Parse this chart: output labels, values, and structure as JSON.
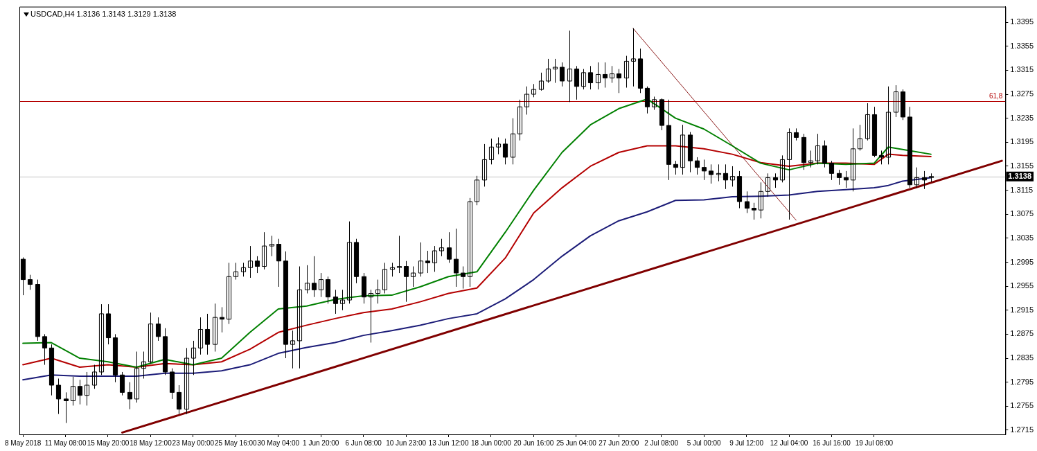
{
  "chart_data": {
    "type": "candlestick",
    "title": "USDCAD,H4 1.3136 1.3143 1.3129 1.3138",
    "color": "#000000",
    "categories": [
      "8 May 2018",
      null,
      null,
      null,
      null,
      null,
      "11 May 08:00",
      null,
      null,
      null,
      null,
      null,
      "15 May 20:00",
      null,
      null,
      null,
      null,
      null,
      "18 May 12:00",
      null,
      null,
      null,
      null,
      null,
      "23 May 00:00",
      null,
      null,
      null,
      null,
      null,
      "25 May 16:00",
      null,
      null,
      null,
      null,
      null,
      "30 May 04:00",
      null,
      null,
      null,
      null,
      null,
      "1 Jun 20:00",
      null,
      null,
      null,
      null,
      null,
      "6 Jun 08:00",
      null,
      null,
      null,
      null,
      null,
      "10 Jun 23:00",
      null,
      null,
      null,
      null,
      null,
      "13 Jun 12:00",
      null,
      null,
      null,
      null,
      null,
      "18 Jun 00:00",
      null,
      null,
      null,
      null,
      null,
      "20 Jun 16:00",
      null,
      null,
      null,
      null,
      null,
      "25 Jun 04:00",
      null,
      null,
      null,
      null,
      null,
      "27 Jun 20:00",
      null,
      null,
      null,
      null,
      null,
      "2 Jul 08:00",
      null,
      null,
      null,
      null,
      null,
      "5 Jul 00:00",
      null,
      null,
      null,
      null,
      null,
      "9 Jul 12:00",
      null,
      null,
      null,
      null,
      null,
      "12 Jul 04:00",
      null,
      null,
      null,
      null,
      null,
      "16 Jul 16:00",
      null,
      null,
      null,
      null,
      null,
      "19 Jul 08:00",
      null,
      null,
      null,
      null,
      null,
      null,
      null,
      null,
      null,
      null,
      null,
      null,
      null,
      null,
      null,
      null,
      null,
      null
    ],
    "ohlc": [
      [
        1.3,
        1.3003,
        1.294,
        1.2966
      ],
      [
        1.2966,
        1.2974,
        1.2949,
        1.2958
      ],
      [
        1.2958,
        1.2966,
        1.2864,
        1.2871
      ],
      [
        1.2871,
        1.2875,
        1.2824,
        1.2852
      ],
      [
        1.2852,
        1.2858,
        1.2773,
        1.279
      ],
      [
        1.279,
        1.2801,
        1.2742,
        1.2767
      ],
      [
        1.2767,
        1.2778,
        1.2727,
        1.2764
      ],
      [
        1.2764,
        1.2804,
        1.2756,
        1.2788
      ],
      [
        1.2788,
        1.2799,
        1.2758,
        1.2773
      ],
      [
        1.2773,
        1.2812,
        1.2756,
        1.279
      ],
      [
        1.279,
        1.2824,
        1.2784,
        1.2812
      ],
      [
        1.2812,
        1.2925,
        1.2807,
        1.2909
      ],
      [
        1.2909,
        1.2925,
        1.2858,
        1.2869
      ],
      [
        1.2869,
        1.2875,
        1.2795,
        1.2807
      ],
      [
        1.2807,
        1.2812,
        1.2773,
        1.2778
      ],
      [
        1.2778,
        1.2795,
        1.275,
        1.2767
      ],
      [
        1.2767,
        1.2846,
        1.2761,
        1.2818
      ],
      [
        1.2818,
        1.2846,
        1.2801,
        1.2829
      ],
      [
        1.2829,
        1.2911,
        1.2826,
        1.2892
      ],
      [
        1.2892,
        1.2903,
        1.2864,
        1.2871
      ],
      [
        1.2871,
        1.2885,
        1.2807,
        1.2812
      ],
      [
        1.2812,
        1.2818,
        1.2767,
        1.2778
      ],
      [
        1.2778,
        1.279,
        1.2742,
        1.275
      ],
      [
        1.275,
        1.2852,
        1.2742,
        1.2835
      ],
      [
        1.2835,
        1.2864,
        1.2807,
        1.2852
      ],
      [
        1.2852,
        1.2903,
        1.2841,
        1.2883
      ],
      [
        1.2883,
        1.2909,
        1.2841,
        1.2858
      ],
      [
        1.2858,
        1.2926,
        1.2846,
        1.2903
      ],
      [
        1.2903,
        1.292,
        1.2878,
        1.29
      ],
      [
        1.29,
        1.2994,
        1.2892,
        1.2971
      ],
      [
        1.2971,
        1.2994,
        1.2966,
        1.2979
      ],
      [
        1.2979,
        1.2994,
        1.2971,
        1.2986
      ],
      [
        1.2986,
        1.3022,
        1.2969,
        1.2997
      ],
      [
        1.2997,
        1.3005,
        1.2977,
        1.2988
      ],
      [
        1.2988,
        1.3045,
        1.2983,
        1.3022
      ],
      [
        1.3022,
        1.3039,
        1.3005,
        1.3025
      ],
      [
        1.3025,
        1.3034,
        1.2954,
        1.2997
      ],
      [
        1.2997,
        1.3013,
        1.2835,
        1.2858
      ],
      [
        1.2858,
        1.2881,
        1.2818,
        1.2864
      ],
      [
        1.2864,
        1.2988,
        1.2818,
        1.2949
      ],
      [
        1.2949,
        1.299,
        1.2943,
        1.296
      ],
      [
        1.296,
        1.3005,
        1.2937,
        1.2949
      ],
      [
        1.2949,
        1.2977,
        1.2937,
        1.2966
      ],
      [
        1.2966,
        1.2971,
        1.2926,
        1.2937
      ],
      [
        1.2937,
        1.2949,
        1.2909,
        1.2926
      ],
      [
        1.2926,
        1.2949,
        1.2915,
        1.2932
      ],
      [
        1.2932,
        1.3063,
        1.2926,
        1.3028
      ],
      [
        1.3028,
        1.3034,
        1.296,
        1.2971
      ],
      [
        1.2971,
        1.2977,
        1.2926,
        1.2937
      ],
      [
        1.2937,
        1.2949,
        1.2861,
        1.2943
      ],
      [
        1.2943,
        1.2966,
        1.2926,
        1.2949
      ],
      [
        1.2949,
        1.2994,
        1.2943,
        1.2983
      ],
      [
        1.2983,
        1.2994,
        1.2971,
        1.2986
      ],
      [
        1.2986,
        1.3039,
        1.2977,
        1.2988
      ],
      [
        1.2988,
        1.2997,
        1.2929,
        1.2971
      ],
      [
        1.2971,
        1.2988,
        1.2954,
        1.2977
      ],
      [
        1.2977,
        1.3028,
        1.2971,
        1.2997
      ],
      [
        1.2997,
        1.3014,
        1.2977,
        1.2994
      ],
      [
        1.2994,
        1.3022,
        1.2979,
        1.3014
      ],
      [
        1.3014,
        1.3034,
        1.3005,
        1.3019
      ],
      [
        1.3019,
        1.3045,
        1.2994,
        1.3
      ],
      [
        1.3,
        1.3051,
        1.2954,
        1.2977
      ],
      [
        1.2977,
        1.2988,
        1.2951,
        1.2971
      ],
      [
        1.2971,
        1.3102,
        1.2954,
        1.3096
      ],
      [
        1.3096,
        1.3139,
        1.309,
        1.3132
      ],
      [
        1.3132,
        1.3192,
        1.3121,
        1.3166
      ],
      [
        1.3166,
        1.3201,
        1.3158,
        1.3187
      ],
      [
        1.3187,
        1.3203,
        1.3175,
        1.3192
      ],
      [
        1.3192,
        1.3201,
        1.3158,
        1.317
      ],
      [
        1.317,
        1.3235,
        1.3158,
        1.3209
      ],
      [
        1.3209,
        1.3266,
        1.3198,
        1.3254
      ],
      [
        1.3254,
        1.3288,
        1.3241,
        1.3275
      ],
      [
        1.3275,
        1.3292,
        1.327,
        1.3283
      ],
      [
        1.3283,
        1.3311,
        1.3281,
        1.3297
      ],
      [
        1.3297,
        1.3334,
        1.3294,
        1.3317
      ],
      [
        1.3317,
        1.3334,
        1.3294,
        1.332
      ],
      [
        1.332,
        1.3328,
        1.3288,
        1.3297
      ],
      [
        1.3297,
        1.3381,
        1.3262,
        1.3317
      ],
      [
        1.3317,
        1.3322,
        1.3266,
        1.3288
      ],
      [
        1.3288,
        1.3317,
        1.3283,
        1.3311
      ],
      [
        1.3311,
        1.3322,
        1.3283,
        1.3294
      ],
      [
        1.3294,
        1.3328,
        1.3283,
        1.3308
      ],
      [
        1.3308,
        1.3328,
        1.3286,
        1.3302
      ],
      [
        1.3302,
        1.3322,
        1.3294,
        1.3309
      ],
      [
        1.3309,
        1.3317,
        1.3277,
        1.3302
      ],
      [
        1.3302,
        1.3339,
        1.3286,
        1.333
      ],
      [
        1.333,
        1.3385,
        1.3288,
        1.3334
      ],
      [
        1.3334,
        1.3351,
        1.3277,
        1.3285
      ],
      [
        1.3285,
        1.3288,
        1.3243,
        1.3254
      ],
      [
        1.3254,
        1.3271,
        1.3249,
        1.3266
      ],
      [
        1.3266,
        1.3268,
        1.3215,
        1.3223
      ],
      [
        1.3223,
        1.3266,
        1.3132,
        1.3158
      ],
      [
        1.3158,
        1.3164,
        1.3141,
        1.3153
      ],
      [
        1.3153,
        1.3224,
        1.3141,
        1.3207
      ],
      [
        1.3207,
        1.3212,
        1.3145,
        1.3164
      ],
      [
        1.3164,
        1.317,
        1.3141,
        1.3153
      ],
      [
        1.3153,
        1.3166,
        1.3132,
        1.3147
      ],
      [
        1.3147,
        1.3158,
        1.3126,
        1.3141
      ],
      [
        1.3141,
        1.3158,
        1.313,
        1.3143
      ],
      [
        1.3143,
        1.3158,
        1.3117,
        1.3132
      ],
      [
        1.3132,
        1.3155,
        1.3121,
        1.3138
      ],
      [
        1.3138,
        1.3147,
        1.3085,
        1.3096
      ],
      [
        1.3096,
        1.3113,
        1.3077,
        1.3085
      ],
      [
        1.3085,
        1.3094,
        1.3066,
        1.3082
      ],
      [
        1.3082,
        1.3128,
        1.3068,
        1.3113
      ],
      [
        1.3113,
        1.3143,
        1.3104,
        1.3136
      ],
      [
        1.3136,
        1.3143,
        1.3119,
        1.3132
      ],
      [
        1.3132,
        1.3173,
        1.3128,
        1.3166
      ],
      [
        1.3166,
        1.3218,
        1.3066,
        1.3211
      ],
      [
        1.3211,
        1.3218,
        1.3198,
        1.3203
      ],
      [
        1.3203,
        1.3209,
        1.3149,
        1.3161
      ],
      [
        1.3161,
        1.3181,
        1.3153,
        1.3164
      ],
      [
        1.3164,
        1.3209,
        1.3158,
        1.3189
      ],
      [
        1.3189,
        1.3198,
        1.3153,
        1.316
      ],
      [
        1.316,
        1.3164,
        1.3132,
        1.3143
      ],
      [
        1.3143,
        1.3149,
        1.3124,
        1.3136
      ],
      [
        1.3136,
        1.3147,
        1.3119,
        1.3132
      ],
      [
        1.3132,
        1.3218,
        1.3113,
        1.3184
      ],
      [
        1.3184,
        1.3224,
        1.3181,
        1.3201
      ],
      [
        1.3201,
        1.326,
        1.3198,
        1.3241
      ],
      [
        1.3241,
        1.3254,
        1.317,
        1.3173
      ],
      [
        1.3173,
        1.3181,
        1.3158,
        1.317
      ],
      [
        1.317,
        1.3288,
        1.3158,
        1.3245
      ],
      [
        1.3245,
        1.329,
        1.3237,
        1.3279
      ],
      [
        1.3279,
        1.3283,
        1.3232,
        1.3237
      ],
      [
        1.3237,
        1.3254,
        1.3119,
        1.3124
      ],
      [
        1.3124,
        1.3153,
        1.3119,
        1.3136
      ],
      [
        1.3136,
        1.3147,
        1.3117,
        1.3132
      ],
      [
        1.3136,
        1.3143,
        1.3129,
        1.3138
      ],
      null,
      null,
      null,
      null,
      null,
      null,
      null,
      null,
      null,
      null
    ],
    "series": [
      {
        "type": "line",
        "color": "#008000",
        "values": [
          1.286,
          null,
          null,
          null,
          1.2861,
          null,
          null,
          null,
          1.2835,
          null,
          null,
          null,
          1.2829,
          null,
          null,
          null,
          1.282,
          null,
          null,
          null,
          1.2833,
          null,
          null,
          null,
          1.2824,
          null,
          null,
          null,
          1.2835,
          null,
          null,
          null,
          1.2878,
          null,
          null,
          null,
          1.2917,
          null,
          null,
          null,
          1.2922,
          null,
          null,
          null,
          1.2933,
          null,
          null,
          null,
          1.2939,
          null,
          null,
          null,
          1.294,
          null,
          null,
          null,
          1.2954,
          null,
          null,
          null,
          1.2971,
          null,
          null,
          null,
          1.2979,
          null,
          null,
          null,
          1.3045,
          null,
          null,
          null,
          1.3115,
          null,
          null,
          null,
          1.3178,
          null,
          null,
          null,
          1.3224,
          null,
          null,
          null,
          1.3251,
          null,
          null,
          null,
          1.3267,
          null,
          null,
          null,
          1.3235,
          null,
          null,
          null,
          1.3217,
          null,
          null,
          null,
          1.3189,
          null,
          null,
          null,
          1.316,
          null,
          null,
          null,
          1.3149,
          null,
          null,
          null,
          1.316,
          null,
          null,
          null,
          1.3158,
          null,
          null,
          null,
          1.316,
          null,
          1.3187,
          null,
          1.3183,
          null,
          null,
          null,
          1.3175,
          null,
          null,
          null,
          null,
          null,
          null,
          null,
          null,
          null,
          null
        ]
      },
      {
        "type": "line",
        "color": "#b40000",
        "values": [
          1.2824,
          null,
          null,
          null,
          1.2835,
          null,
          null,
          null,
          1.282,
          null,
          null,
          null,
          1.2824,
          null,
          null,
          null,
          1.282,
          null,
          null,
          null,
          1.2826,
          null,
          null,
          null,
          1.2824,
          null,
          null,
          null,
          1.2829,
          null,
          null,
          null,
          1.285,
          null,
          null,
          null,
          1.2878,
          null,
          null,
          null,
          1.289,
          null,
          null,
          null,
          1.2901,
          null,
          null,
          null,
          1.2911,
          null,
          null,
          null,
          1.2917,
          null,
          null,
          null,
          1.2929,
          null,
          null,
          null,
          1.2943,
          null,
          null,
          null,
          1.2952,
          null,
          null,
          null,
          1.3002,
          null,
          null,
          null,
          1.3077,
          null,
          null,
          null,
          1.3119,
          null,
          null,
          null,
          1.3155,
          null,
          null,
          null,
          1.3178,
          null,
          null,
          null,
          1.3189,
          null,
          null,
          null,
          1.3189,
          null,
          null,
          null,
          1.3184,
          null,
          null,
          null,
          1.3175,
          null,
          null,
          null,
          1.3161,
          null,
          null,
          null,
          1.3155,
          null,
          null,
          null,
          1.316,
          null,
          null,
          null,
          1.316,
          null,
          null,
          null,
          1.3158,
          null,
          1.3175,
          null,
          1.3173,
          null,
          null,
          null,
          1.3171,
          null,
          null,
          null,
          null,
          null,
          null,
          null,
          null,
          null,
          null
        ]
      },
      {
        "type": "line",
        "color": "#1c1c78",
        "values": [
          1.2799,
          null,
          null,
          null,
          1.2807,
          null,
          null,
          null,
          1.2805,
          null,
          null,
          null,
          1.2805,
          null,
          null,
          null,
          1.2805,
          null,
          null,
          null,
          1.281,
          null,
          null,
          null,
          1.281,
          null,
          null,
          null,
          1.2814,
          null,
          null,
          null,
          1.2824,
          null,
          null,
          null,
          1.2843,
          null,
          null,
          null,
          1.2853,
          null,
          null,
          null,
          1.2861,
          null,
          null,
          null,
          1.2873,
          null,
          null,
          null,
          1.2881,
          null,
          null,
          null,
          1.289,
          null,
          null,
          null,
          1.2901,
          null,
          null,
          null,
          1.2909,
          null,
          null,
          null,
          1.2934,
          null,
          null,
          null,
          1.2966,
          null,
          null,
          null,
          1.3005,
          null,
          null,
          null,
          1.3039,
          null,
          null,
          null,
          1.3064,
          null,
          null,
          null,
          1.3079,
          null,
          null,
          null,
          1.3098,
          null,
          null,
          null,
          1.3099,
          null,
          null,
          null,
          1.3104,
          null,
          null,
          null,
          1.3105,
          null,
          null,
          null,
          1.3107,
          null,
          null,
          null,
          1.3113,
          null,
          null,
          null,
          1.3116,
          null,
          null,
          null,
          1.3119,
          null,
          1.3123,
          null,
          1.313,
          null,
          null,
          null,
          1.3136,
          null,
          null,
          null,
          null,
          null,
          null,
          null,
          null,
          null,
          null
        ]
      },
      {
        "type": "line",
        "color": "#800000",
        "values": [
          null,
          null,
          null,
          null,
          null,
          null,
          null,
          null,
          null,
          null,
          null,
          null,
          null,
          null,
          1.2711,
          null,
          null,
          null,
          null,
          null,
          null,
          null,
          null,
          null,
          null,
          null,
          null,
          null,
          null,
          null,
          null,
          null,
          null,
          null,
          null,
          null,
          null,
          null,
          null,
          null,
          null,
          null,
          null,
          null,
          null,
          null,
          null,
          null,
          null,
          null,
          null,
          null,
          null,
          null,
          null,
          null,
          null,
          null,
          null,
          null,
          null,
          null,
          null,
          null,
          null,
          null,
          null,
          null,
          null,
          null,
          null,
          null,
          null,
          null,
          null,
          null,
          null,
          null,
          null,
          null,
          null,
          null,
          null,
          null,
          null,
          null,
          null,
          null,
          null,
          null,
          null,
          null,
          null,
          null,
          null,
          null,
          null,
          null,
          null,
          null,
          null,
          null,
          null,
          null,
          null,
          null,
          null,
          null,
          null,
          null,
          null,
          null,
          null,
          null,
          null,
          null,
          null,
          null,
          null,
          null,
          null,
          null,
          null,
          null,
          null,
          null,
          null,
          null,
          null,
          null,
          null,
          null,
          null,
          null,
          null,
          null,
          null,
          null,
          1.3164
        ]
      },
      {
        "type": "line",
        "color": "#8b1a1a",
        "values": [
          null,
          null,
          null,
          null,
          null,
          null,
          null,
          null,
          null,
          null,
          null,
          null,
          null,
          null,
          null,
          null,
          null,
          null,
          null,
          null,
          null,
          null,
          null,
          null,
          null,
          null,
          null,
          null,
          null,
          null,
          null,
          null,
          null,
          null,
          null,
          null,
          null,
          null,
          null,
          null,
          null,
          null,
          null,
          null,
          null,
          null,
          null,
          null,
          null,
          null,
          null,
          null,
          null,
          null,
          null,
          null,
          null,
          null,
          null,
          null,
          null,
          null,
          null,
          null,
          null,
          null,
          null,
          null,
          null,
          null,
          null,
          null,
          null,
          null,
          null,
          null,
          null,
          null,
          null,
          null,
          null,
          null,
          null,
          null,
          null,
          null,
          1.3385,
          null,
          null,
          null,
          null,
          null,
          null,
          null,
          null,
          null,
          null,
          null,
          null,
          null,
          null,
          null,
          null,
          null,
          null,
          null,
          null,
          null,
          null,
          1.3065,
          null,
          null,
          null,
          null,
          null,
          null,
          null,
          null,
          null,
          null,
          null,
          null,
          null,
          null,
          null,
          null,
          null,
          null,
          null,
          null,
          null,
          null,
          null,
          null,
          null,
          null,
          null,
          null,
          null
        ]
      }
    ],
    "ylim": [
      1.2708,
      1.3421
    ],
    "yticks": [
      1.2715,
      1.2755,
      1.2795,
      1.2835,
      1.2875,
      1.2915,
      1.2955,
      1.2995,
      1.3035,
      1.3075,
      1.3115,
      1.3155,
      1.3195,
      1.3235,
      1.3275,
      1.3315,
      1.3355,
      1.3395
    ],
    "ref_lines": [
      {
        "axis": "y",
        "value": 1.3138,
        "label": "1.3138",
        "color": "#c0c0c0"
      },
      {
        "axis": "y",
        "value": 1.3263,
        "color": "#b40000"
      }
    ],
    "annotations": [
      {
        "text": "61,8",
        "y": 1.3263
      }
    ]
  }
}
